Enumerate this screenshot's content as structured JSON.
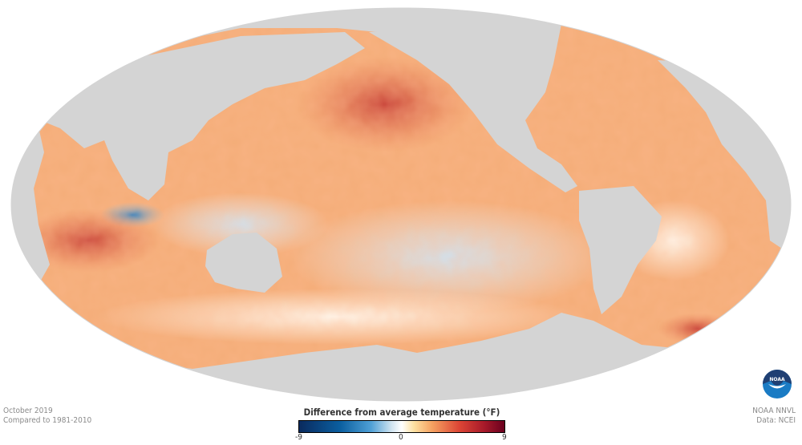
{
  "caption_left": {
    "date": "October 2019",
    "baseline": "Compared to 1981-2010"
  },
  "caption_right": {
    "credit": "NOAA NNVL",
    "source": "Data: NCEI"
  },
  "legend": {
    "title": "Difference from average temperature (°F)",
    "min_label": "-9",
    "mid_label": "0",
    "max_label": "9",
    "colors": [
      "#0a2a5e",
      "#4fa0d6",
      "#ffffff",
      "#f5a060",
      "#dc4535",
      "#6a001e"
    ]
  },
  "logo": {
    "text": "NOAA"
  },
  "colors": {
    "land": "#d4d4d4",
    "ocean_warm": "#f3a468",
    "ocean_hot": "#c8382e",
    "ocean_cool": "#bcd6ea"
  }
}
